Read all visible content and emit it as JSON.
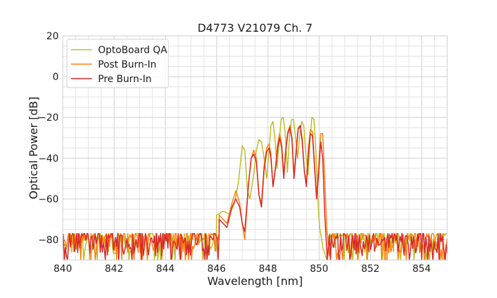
{
  "chart_data": {
    "type": "line",
    "title": "D4773 V21079 Ch. 7",
    "xlabel": "Wavelength [nm]",
    "ylabel": "Optical Power [dB]",
    "xlim": [
      840,
      855
    ],
    "ylim": [
      -90,
      20
    ],
    "xticks": [
      840,
      842,
      844,
      846,
      848,
      850,
      852,
      854
    ],
    "yticks": [
      20,
      0,
      -20,
      -40,
      -60,
      -80
    ],
    "xtick_labels": [
      "840",
      "842",
      "844",
      "846",
      "848",
      "850",
      "852",
      "854"
    ],
    "ytick_labels": [
      "20",
      "0",
      "−20",
      "−40",
      "−60",
      "−80"
    ],
    "grid": true,
    "legend_position": "top-left",
    "series": [
      {
        "name": "OptoBoard QA",
        "color": "#bcbd22",
        "noise_floor": -80,
        "noise_range": [
          -77,
          -90
        ],
        "points": [
          [
            846.0,
            -68
          ],
          [
            846.25,
            -66
          ],
          [
            846.5,
            -67.5
          ],
          [
            846.7,
            -62
          ],
          [
            846.85,
            -52
          ],
          [
            847.0,
            -34
          ],
          [
            847.1,
            -36
          ],
          [
            847.2,
            -56
          ],
          [
            847.3,
            -60
          ],
          [
            847.45,
            -48
          ],
          [
            847.55,
            -36
          ],
          [
            847.65,
            -31
          ],
          [
            847.75,
            -32
          ],
          [
            847.85,
            -40
          ],
          [
            847.95,
            -50
          ],
          [
            848.05,
            -36
          ],
          [
            848.12,
            -24
          ],
          [
            848.2,
            -22
          ],
          [
            848.28,
            -31
          ],
          [
            848.36,
            -45
          ],
          [
            848.45,
            -30
          ],
          [
            848.52,
            -21
          ],
          [
            848.6,
            -20
          ],
          [
            848.68,
            -28
          ],
          [
            848.76,
            -47
          ],
          [
            848.85,
            -28
          ],
          [
            848.93,
            -21
          ],
          [
            849.0,
            -21
          ],
          [
            849.08,
            -30
          ],
          [
            849.16,
            -40
          ],
          [
            849.25,
            -28
          ],
          [
            849.32,
            -22
          ],
          [
            849.4,
            -24
          ],
          [
            849.48,
            -38
          ],
          [
            849.57,
            -48
          ],
          [
            849.65,
            -30
          ],
          [
            849.72,
            -20
          ],
          [
            849.8,
            -21
          ],
          [
            849.88,
            -38
          ],
          [
            849.96,
            -62
          ],
          [
            850.02,
            -74
          ],
          [
            850.15,
            -84
          ],
          [
            850.3,
            -90
          ]
        ]
      },
      {
        "name": "Post Burn-In",
        "color": "#ff7f0e",
        "noise_floor": -80,
        "noise_range": [
          -77,
          -90
        ],
        "points": [
          [
            846.1,
            -68
          ],
          [
            846.4,
            -72
          ],
          [
            846.6,
            -62
          ],
          [
            846.75,
            -56
          ],
          [
            846.9,
            -62
          ],
          [
            847.0,
            -72
          ],
          [
            847.1,
            -80
          ],
          [
            847.25,
            -52
          ],
          [
            847.35,
            -40
          ],
          [
            847.45,
            -36
          ],
          [
            847.55,
            -40
          ],
          [
            847.65,
            -58
          ],
          [
            847.75,
            -62
          ],
          [
            847.85,
            -44
          ],
          [
            847.95,
            -35
          ],
          [
            848.05,
            -33
          ],
          [
            848.12,
            -38
          ],
          [
            848.2,
            -54
          ],
          [
            848.3,
            -44
          ],
          [
            848.38,
            -33
          ],
          [
            848.46,
            -28
          ],
          [
            848.54,
            -33
          ],
          [
            848.62,
            -48
          ],
          [
            848.7,
            -35
          ],
          [
            848.78,
            -27
          ],
          [
            848.86,
            -24
          ],
          [
            848.94,
            -30
          ],
          [
            849.02,
            -48
          ],
          [
            849.1,
            -36
          ],
          [
            849.18,
            -25
          ],
          [
            849.26,
            -24
          ],
          [
            849.34,
            -30
          ],
          [
            849.42,
            -46
          ],
          [
            849.5,
            -52
          ],
          [
            849.58,
            -35
          ],
          [
            849.66,
            -26
          ],
          [
            849.74,
            -27
          ],
          [
            849.82,
            -42
          ],
          [
            849.9,
            -58
          ],
          [
            849.98,
            -44
          ],
          [
            850.06,
            -28
          ],
          [
            850.14,
            -28
          ],
          [
            850.22,
            -50
          ],
          [
            850.3,
            -75
          ],
          [
            850.4,
            -88
          ]
        ]
      },
      {
        "name": "Pre Burn-In",
        "color": "#d62728",
        "noise_floor": -81,
        "noise_range": [
          -77,
          -90
        ],
        "points": [
          [
            846.1,
            -70
          ],
          [
            846.4,
            -74
          ],
          [
            846.6,
            -64
          ],
          [
            846.75,
            -60
          ],
          [
            846.9,
            -64
          ],
          [
            847.0,
            -72
          ],
          [
            847.1,
            -76
          ],
          [
            847.25,
            -52
          ],
          [
            847.35,
            -40
          ],
          [
            847.45,
            -38
          ],
          [
            847.55,
            -42
          ],
          [
            847.65,
            -58
          ],
          [
            847.75,
            -64
          ],
          [
            847.85,
            -46
          ],
          [
            847.95,
            -37
          ],
          [
            848.05,
            -35
          ],
          [
            848.12,
            -40
          ],
          [
            848.2,
            -54
          ],
          [
            848.3,
            -45
          ],
          [
            848.38,
            -35
          ],
          [
            848.46,
            -30
          ],
          [
            848.54,
            -35
          ],
          [
            848.62,
            -50
          ],
          [
            848.7,
            -36
          ],
          [
            848.78,
            -28
          ],
          [
            848.86,
            -25
          ],
          [
            848.94,
            -31
          ],
          [
            849.02,
            -50
          ],
          [
            849.1,
            -38
          ],
          [
            849.18,
            -26
          ],
          [
            849.26,
            -24
          ],
          [
            849.34,
            -32
          ],
          [
            849.42,
            -46
          ],
          [
            849.5,
            -54
          ],
          [
            849.58,
            -38
          ],
          [
            849.66,
            -28
          ],
          [
            849.74,
            -29
          ],
          [
            849.82,
            -44
          ],
          [
            849.9,
            -60
          ],
          [
            849.98,
            -48
          ],
          [
            850.06,
            -32
          ],
          [
            850.14,
            -40
          ],
          [
            850.22,
            -68
          ],
          [
            850.32,
            -90
          ]
        ]
      }
    ]
  }
}
